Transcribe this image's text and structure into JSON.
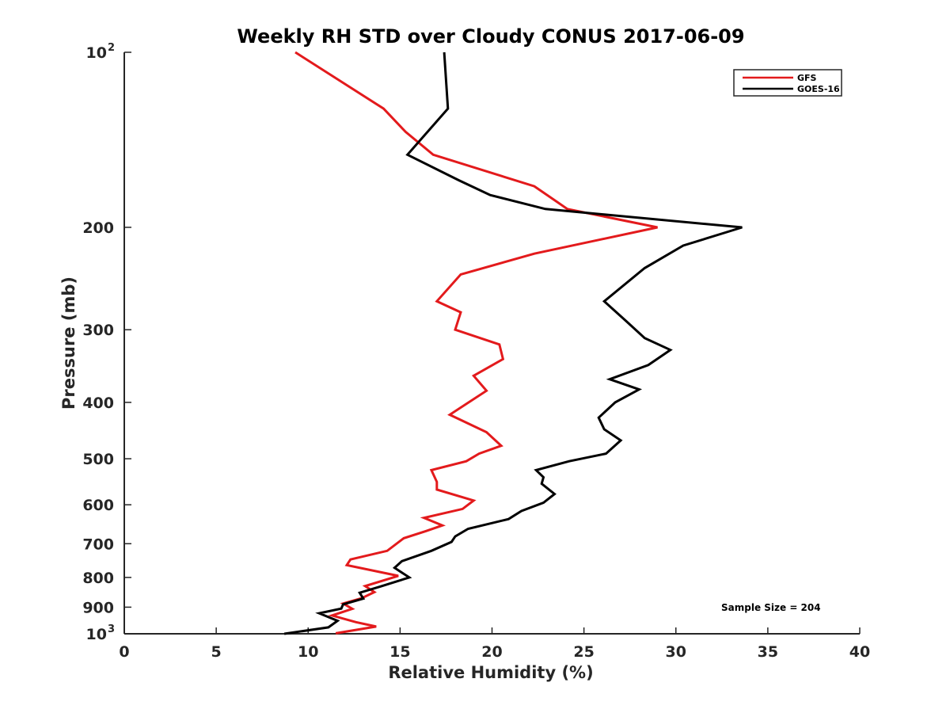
{
  "chart_data": {
    "type": "line",
    "title": "Weekly RH STD over Cloudy CONUS 2017-06-09",
    "xlabel": "Relative Humidity (%)",
    "ylabel": "Pressure (mb)",
    "xlim": [
      0,
      40
    ],
    "ylim": [
      100,
      1000
    ],
    "y_scale": "log",
    "y_reversed": true,
    "grid": false,
    "legend_position": "top-right",
    "x_ticks": [
      {
        "value": 0,
        "label": "0"
      },
      {
        "value": 5,
        "label": "5"
      },
      {
        "value": 10,
        "label": "10"
      },
      {
        "value": 15,
        "label": "15"
      },
      {
        "value": 20,
        "label": "20"
      },
      {
        "value": 25,
        "label": "25"
      },
      {
        "value": 30,
        "label": "30"
      },
      {
        "value": 35,
        "label": "35"
      },
      {
        "value": 40,
        "label": "40"
      }
    ],
    "y_ticks": [
      {
        "value": 100,
        "label": "10",
        "sup": "2"
      },
      {
        "value": 200,
        "label": "200"
      },
      {
        "value": 300,
        "label": "300"
      },
      {
        "value": 400,
        "label": "400"
      },
      {
        "value": 500,
        "label": "500"
      },
      {
        "value": 600,
        "label": "600"
      },
      {
        "value": 700,
        "label": "700"
      },
      {
        "value": 800,
        "label": "800"
      },
      {
        "value": 900,
        "label": "900"
      },
      {
        "value": 1000,
        "label": "10",
        "sup": "3"
      }
    ],
    "series": [
      {
        "name": "GFS",
        "color": "#e31a1c",
        "points": [
          [
            9.3,
            100
          ],
          [
            14.1,
            125
          ],
          [
            15.3,
            137
          ],
          [
            16.8,
            150
          ],
          [
            22.3,
            170
          ],
          [
            24.1,
            186
          ],
          [
            29.0,
            200
          ],
          [
            22.3,
            222
          ],
          [
            18.3,
            241
          ],
          [
            17.0,
            268
          ],
          [
            18.3,
            280
          ],
          [
            18.0,
            300
          ],
          [
            20.4,
            318
          ],
          [
            20.6,
            337
          ],
          [
            19.0,
            360
          ],
          [
            19.7,
            382
          ],
          [
            17.7,
            420
          ],
          [
            19.7,
            450
          ],
          [
            20.5,
            475
          ],
          [
            19.3,
            490
          ],
          [
            18.6,
            505
          ],
          [
            16.7,
            523
          ],
          [
            17.0,
            548
          ],
          [
            17.0,
            565
          ],
          [
            19.0,
            590
          ],
          [
            18.4,
            610
          ],
          [
            16.3,
            632
          ],
          [
            17.3,
            651
          ],
          [
            16.4,
            666
          ],
          [
            15.2,
            685
          ],
          [
            14.3,
            720
          ],
          [
            12.3,
            745
          ],
          [
            12.1,
            762
          ],
          [
            14.9,
            795
          ],
          [
            13.1,
            828
          ],
          [
            13.6,
            848
          ],
          [
            12.9,
            869
          ],
          [
            11.9,
            887
          ],
          [
            12.4,
            906
          ],
          [
            11.3,
            930
          ],
          [
            12.6,
            955
          ],
          [
            13.7,
            972
          ],
          [
            11.5,
            998
          ]
        ]
      },
      {
        "name": "GOES-16",
        "color": "#000000",
        "points": [
          [
            17.4,
            100
          ],
          [
            17.6,
            125
          ],
          [
            15.4,
            150
          ],
          [
            18.2,
            166
          ],
          [
            19.9,
            176
          ],
          [
            22.9,
            186
          ],
          [
            33.6,
            200
          ],
          [
            30.4,
            215
          ],
          [
            28.3,
            235
          ],
          [
            26.1,
            268
          ],
          [
            27.3,
            290
          ],
          [
            28.3,
            310
          ],
          [
            29.7,
            325
          ],
          [
            28.5,
            345
          ],
          [
            26.4,
            365
          ],
          [
            28.0,
            380
          ],
          [
            26.7,
            400
          ],
          [
            25.8,
            425
          ],
          [
            26.1,
            445
          ],
          [
            27.0,
            465
          ],
          [
            26.2,
            490
          ],
          [
            24.2,
            505
          ],
          [
            22.4,
            523
          ],
          [
            22.8,
            538
          ],
          [
            22.7,
            552
          ],
          [
            23.4,
            575
          ],
          [
            22.8,
            595
          ],
          [
            21.6,
            615
          ],
          [
            20.9,
            635
          ],
          [
            18.7,
            660
          ],
          [
            18.0,
            680
          ],
          [
            17.8,
            695
          ],
          [
            16.7,
            720
          ],
          [
            15.1,
            750
          ],
          [
            14.7,
            770
          ],
          [
            15.5,
            800
          ],
          [
            13.9,
            830
          ],
          [
            12.8,
            850
          ],
          [
            13.0,
            870
          ],
          [
            11.9,
            890
          ],
          [
            11.8,
            905
          ],
          [
            10.6,
            922
          ],
          [
            11.6,
            950
          ],
          [
            11.1,
            975
          ],
          [
            8.7,
            1000
          ]
        ]
      }
    ],
    "annotation": "Sample Size = 204"
  }
}
